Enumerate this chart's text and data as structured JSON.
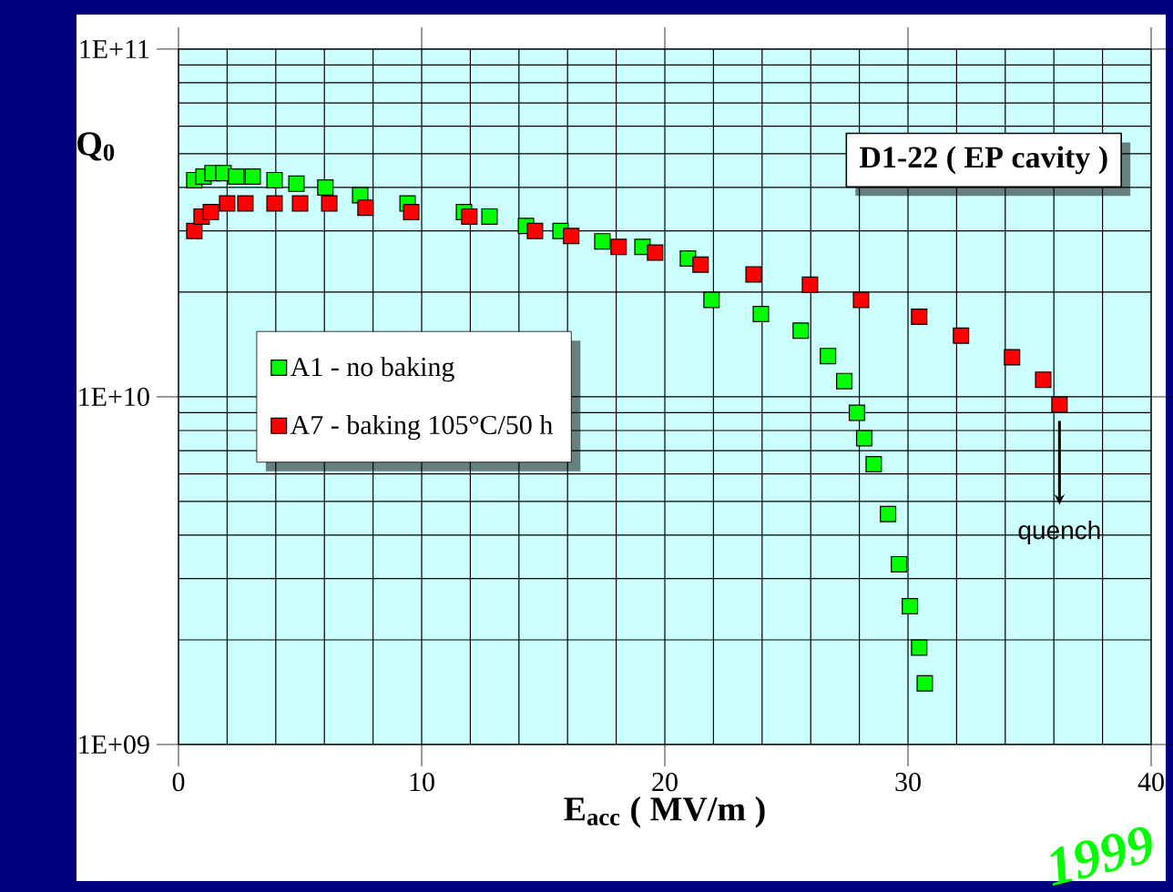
{
  "chart_data": {
    "type": "scatter",
    "title": "D1-22 ( EP cavity )",
    "xlabel": "E$_{acc}$ ( MV/m )",
    "ylabel": "Q$_{0}$",
    "xlim": [
      0,
      40
    ],
    "xticks": [
      0,
      10,
      20,
      30,
      40
    ],
    "ylim": [
      1000000000.0,
      100000000000.0
    ],
    "yticks": [
      {
        "value": 1000000000.0,
        "label": "1E+09"
      },
      {
        "value": 10000000000.0,
        "label": "1E+10"
      },
      {
        "value": 100000000000.0,
        "label": "1E+11"
      }
    ],
    "log": "y",
    "grid": true,
    "legend": "left",
    "marker": "square",
    "series": [
      {
        "name": "A1 - no baking",
        "color": "#00ff00",
        "x": [
          0.65,
          1.03,
          1.4,
          1.85,
          2.37,
          3.05,
          3.95,
          4.85,
          6.04,
          7.47,
          9.42,
          11.74,
          12.79,
          14.29,
          15.71,
          17.43,
          19.08,
          20.95,
          21.92,
          23.95,
          25.59,
          26.71,
          27.38,
          27.9,
          28.2,
          28.59,
          29.18,
          29.63,
          30.08,
          30.46,
          30.69
        ],
        "values": [
          42000000000.0,
          43000000000.0,
          44000000000.0,
          44000000000.0,
          43000000000.0,
          43000000000.0,
          42000000000.0,
          41000000000.0,
          40000000000.0,
          38000000000.0,
          36000000000.0,
          34000000000.0,
          33000000000.0,
          31000000000.0,
          30000000000.0,
          28000000000.0,
          27000000000.0,
          25000000000.0,
          19000000000.0,
          17300000000.0,
          15500000000.0,
          13100000000.0,
          11100000000.0,
          9000000000.0,
          7600000000.0,
          6400000000.0,
          4600000000.0,
          3300000000.0,
          2500000000.0,
          1900000000.0,
          1500000000.0
        ]
      },
      {
        "name": "A7 - baking 105°C/50 h",
        "color": "#ff0000",
        "x": [
          0.65,
          0.95,
          1.33,
          2.0,
          2.75,
          3.95,
          5.0,
          6.2,
          7.69,
          9.57,
          11.96,
          14.66,
          16.15,
          18.1,
          19.6,
          21.47,
          23.65,
          25.97,
          28.07,
          30.46,
          32.18,
          34.28,
          35.56,
          36.23
        ],
        "values": [
          30000000000.0,
          33000000000.0,
          34000000000.0,
          36000000000.0,
          36000000000.0,
          36000000000.0,
          36000000000.0,
          36000000000.0,
          35000000000.0,
          34000000000.0,
          33000000000.0,
          30000000000.0,
          29000000000.0,
          27000000000.0,
          26000000000.0,
          24000000000.0,
          22500000000.0,
          21000000000.0,
          19000000000.0,
          17000000000.0,
          15000000000.0,
          13000000000.0,
          11200000000.0,
          9500000000.0
        ]
      }
    ],
    "annotations": [
      {
        "text": "quench",
        "x": 36.23,
        "y": 9500000000.0
      },
      "1999"
    ]
  }
}
